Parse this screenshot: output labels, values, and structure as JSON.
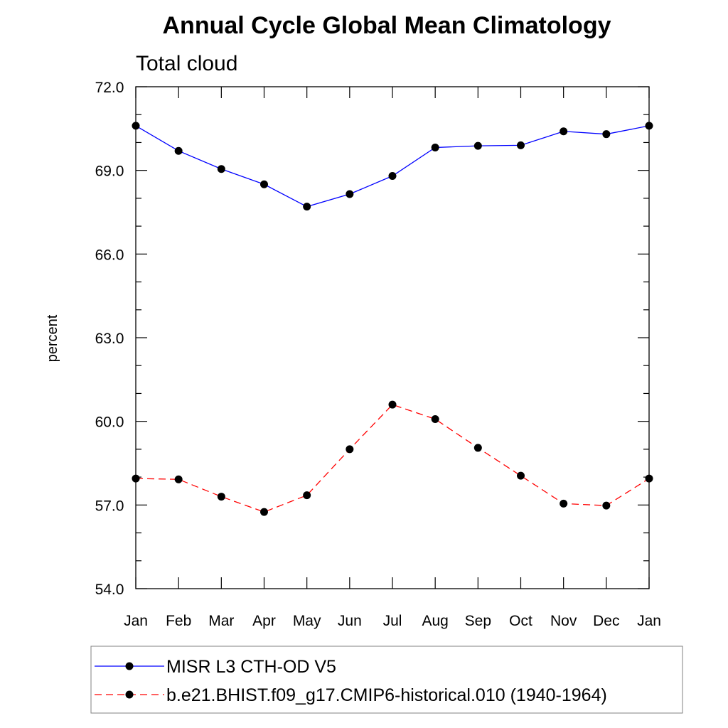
{
  "chart_data": {
    "type": "line",
    "title": "Annual Cycle Global Mean Climatology",
    "subtitle": "Total cloud",
    "xlabel": "",
    "ylabel": "percent",
    "categories": [
      "Jan",
      "Feb",
      "Mar",
      "Apr",
      "May",
      "Jun",
      "Jul",
      "Aug",
      "Sep",
      "Oct",
      "Nov",
      "Dec",
      "Jan"
    ],
    "ylim": [
      54.0,
      72.0
    ],
    "yticks": [
      "54.0",
      "57.0",
      "60.0",
      "63.0",
      "66.0",
      "69.0",
      "72.0"
    ],
    "grid": false,
    "legend_position": "bottom",
    "series": [
      {
        "name": "MISR L3 CTH-OD V5",
        "color": "#0000ff",
        "line_style": "solid",
        "marker": "filled-circle",
        "values": [
          70.6,
          69.7,
          69.05,
          68.5,
          67.7,
          68.15,
          68.8,
          69.82,
          69.88,
          69.9,
          70.4,
          70.3,
          70.6
        ]
      },
      {
        "name": "b.e21.BHIST.f09_g17.CMIP6-historical.010 (1940-1964)",
        "color": "#ff0000",
        "line_style": "dashed",
        "marker": "filled-circle",
        "values": [
          57.95,
          57.92,
          57.3,
          56.75,
          57.35,
          59.0,
          60.6,
          60.08,
          59.05,
          58.05,
          57.05,
          56.98,
          57.95
        ]
      }
    ]
  }
}
